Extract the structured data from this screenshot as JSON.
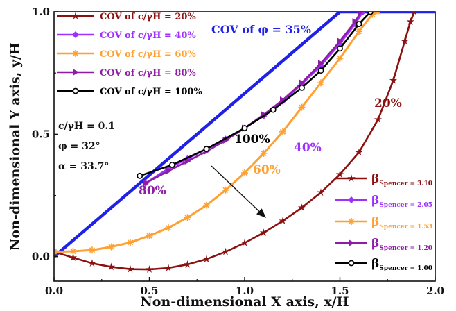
{
  "chart_data": {
    "type": "line",
    "xlabel": "Non-dimensional X axis, x/H",
    "ylabel": "Non-dimensional Y axis, y/H",
    "xlim": [
      0,
      2.0
    ],
    "ylim": [
      -0.1,
      1.0
    ],
    "xticks": [
      "0.0",
      "0.5",
      "1.0",
      "1.5",
      "2.0"
    ],
    "yticks": [
      "0.0",
      "0.5",
      "1.0"
    ],
    "grid": false,
    "slope_line": {
      "label": "COV of φ = 35%",
      "color": "#1f22e6",
      "points": [
        [
          0.0,
          0.0
        ],
        [
          1.5,
          1.0
        ],
        [
          2.0,
          1.0
        ]
      ]
    },
    "series": [
      {
        "name": "COV of c/γH = 20%",
        "beta_label": "β",
        "beta_sub": "Spencer",
        "beta_value": " = 3.10",
        "curve_label": "20%",
        "color": "#8b1111",
        "marker": "star",
        "points": [
          [
            0.0,
            0.02
          ],
          [
            0.1,
            -0.004
          ],
          [
            0.2,
            -0.027
          ],
          [
            0.3,
            -0.042
          ],
          [
            0.4,
            -0.051
          ],
          [
            0.5,
            -0.052
          ],
          [
            0.6,
            -0.046
          ],
          [
            0.7,
            -0.032
          ],
          [
            0.8,
            -0.01
          ],
          [
            0.9,
            0.02
          ],
          [
            1.0,
            0.056
          ],
          [
            1.1,
            0.098
          ],
          [
            1.2,
            0.146
          ],
          [
            1.3,
            0.2
          ],
          [
            1.4,
            0.262
          ],
          [
            1.5,
            0.336
          ],
          [
            1.6,
            0.426
          ],
          [
            1.7,
            0.56
          ],
          [
            1.78,
            0.72
          ],
          [
            1.84,
            0.88
          ],
          [
            1.87,
            0.96
          ],
          [
            1.89,
            1.0
          ]
        ]
      },
      {
        "name": "COV of c/γH = 40%",
        "beta_label": "β",
        "beta_sub": "Spencer",
        "beta_value": " = 2.05",
        "curve_label": "40%",
        "color": "#9b30ff",
        "marker": "diamond",
        "points": [
          [
            0.48,
            0.3
          ],
          [
            0.6,
            0.36
          ],
          [
            0.7,
            0.4
          ],
          [
            0.8,
            0.44
          ],
          [
            0.9,
            0.48
          ],
          [
            1.0,
            0.525
          ],
          [
            1.1,
            0.575
          ],
          [
            1.2,
            0.635
          ],
          [
            1.3,
            0.705
          ],
          [
            1.4,
            0.78
          ],
          [
            1.5,
            0.87
          ],
          [
            1.58,
            0.95
          ],
          [
            1.62,
            1.0
          ]
        ]
      },
      {
        "name": "COV of c/γH = 60%",
        "beta_label": "β",
        "beta_sub": "Spencer",
        "beta_value": " = 1.53",
        "curve_label": "60%",
        "color": "#ffa033",
        "marker": "asterisk",
        "points": [
          [
            0.0,
            0.02
          ],
          [
            0.1,
            0.022
          ],
          [
            0.2,
            0.027
          ],
          [
            0.3,
            0.04
          ],
          [
            0.4,
            0.058
          ],
          [
            0.5,
            0.085
          ],
          [
            0.6,
            0.118
          ],
          [
            0.7,
            0.16
          ],
          [
            0.8,
            0.21
          ],
          [
            0.9,
            0.272
          ],
          [
            1.0,
            0.342
          ],
          [
            1.1,
            0.422
          ],
          [
            1.2,
            0.51
          ],
          [
            1.3,
            0.61
          ],
          [
            1.4,
            0.71
          ],
          [
            1.5,
            0.81
          ],
          [
            1.6,
            0.92
          ],
          [
            1.67,
            0.99
          ],
          [
            1.7,
            1.0
          ]
        ]
      },
      {
        "name": "COV of c/γH = 80%",
        "beta_label": "β",
        "beta_sub": "Spencer",
        "beta_value": " = 1.20",
        "curve_label": "80%",
        "color": "#8e1da6",
        "marker": "triangle-right",
        "points": [
          [
            0.48,
            0.3
          ],
          [
            0.6,
            0.35
          ],
          [
            0.7,
            0.39
          ],
          [
            0.8,
            0.43
          ],
          [
            0.9,
            0.475
          ],
          [
            1.0,
            0.525
          ],
          [
            1.1,
            0.58
          ],
          [
            1.2,
            0.64
          ],
          [
            1.3,
            0.71
          ],
          [
            1.4,
            0.79
          ],
          [
            1.5,
            0.88
          ],
          [
            1.58,
            0.96
          ],
          [
            1.61,
            1.0
          ]
        ]
      },
      {
        "name": "COV of c/γH = 100%",
        "beta_label": "β",
        "beta_sub": "Spencer",
        "beta_value": " = 1.00",
        "curve_label": "100%",
        "color": "#000000",
        "marker": "circle",
        "points": [
          [
            0.45,
            0.33
          ],
          [
            0.62,
            0.375
          ],
          [
            0.8,
            0.44
          ],
          [
            1.0,
            0.525
          ],
          [
            1.15,
            0.6
          ],
          [
            1.3,
            0.69
          ],
          [
            1.4,
            0.76
          ],
          [
            1.5,
            0.85
          ],
          [
            1.6,
            0.95
          ],
          [
            1.66,
            1.0
          ]
        ]
      }
    ],
    "annotations": [
      "c/γH = 0.1",
      "φ = 32°",
      "α = 33.7°"
    ]
  }
}
